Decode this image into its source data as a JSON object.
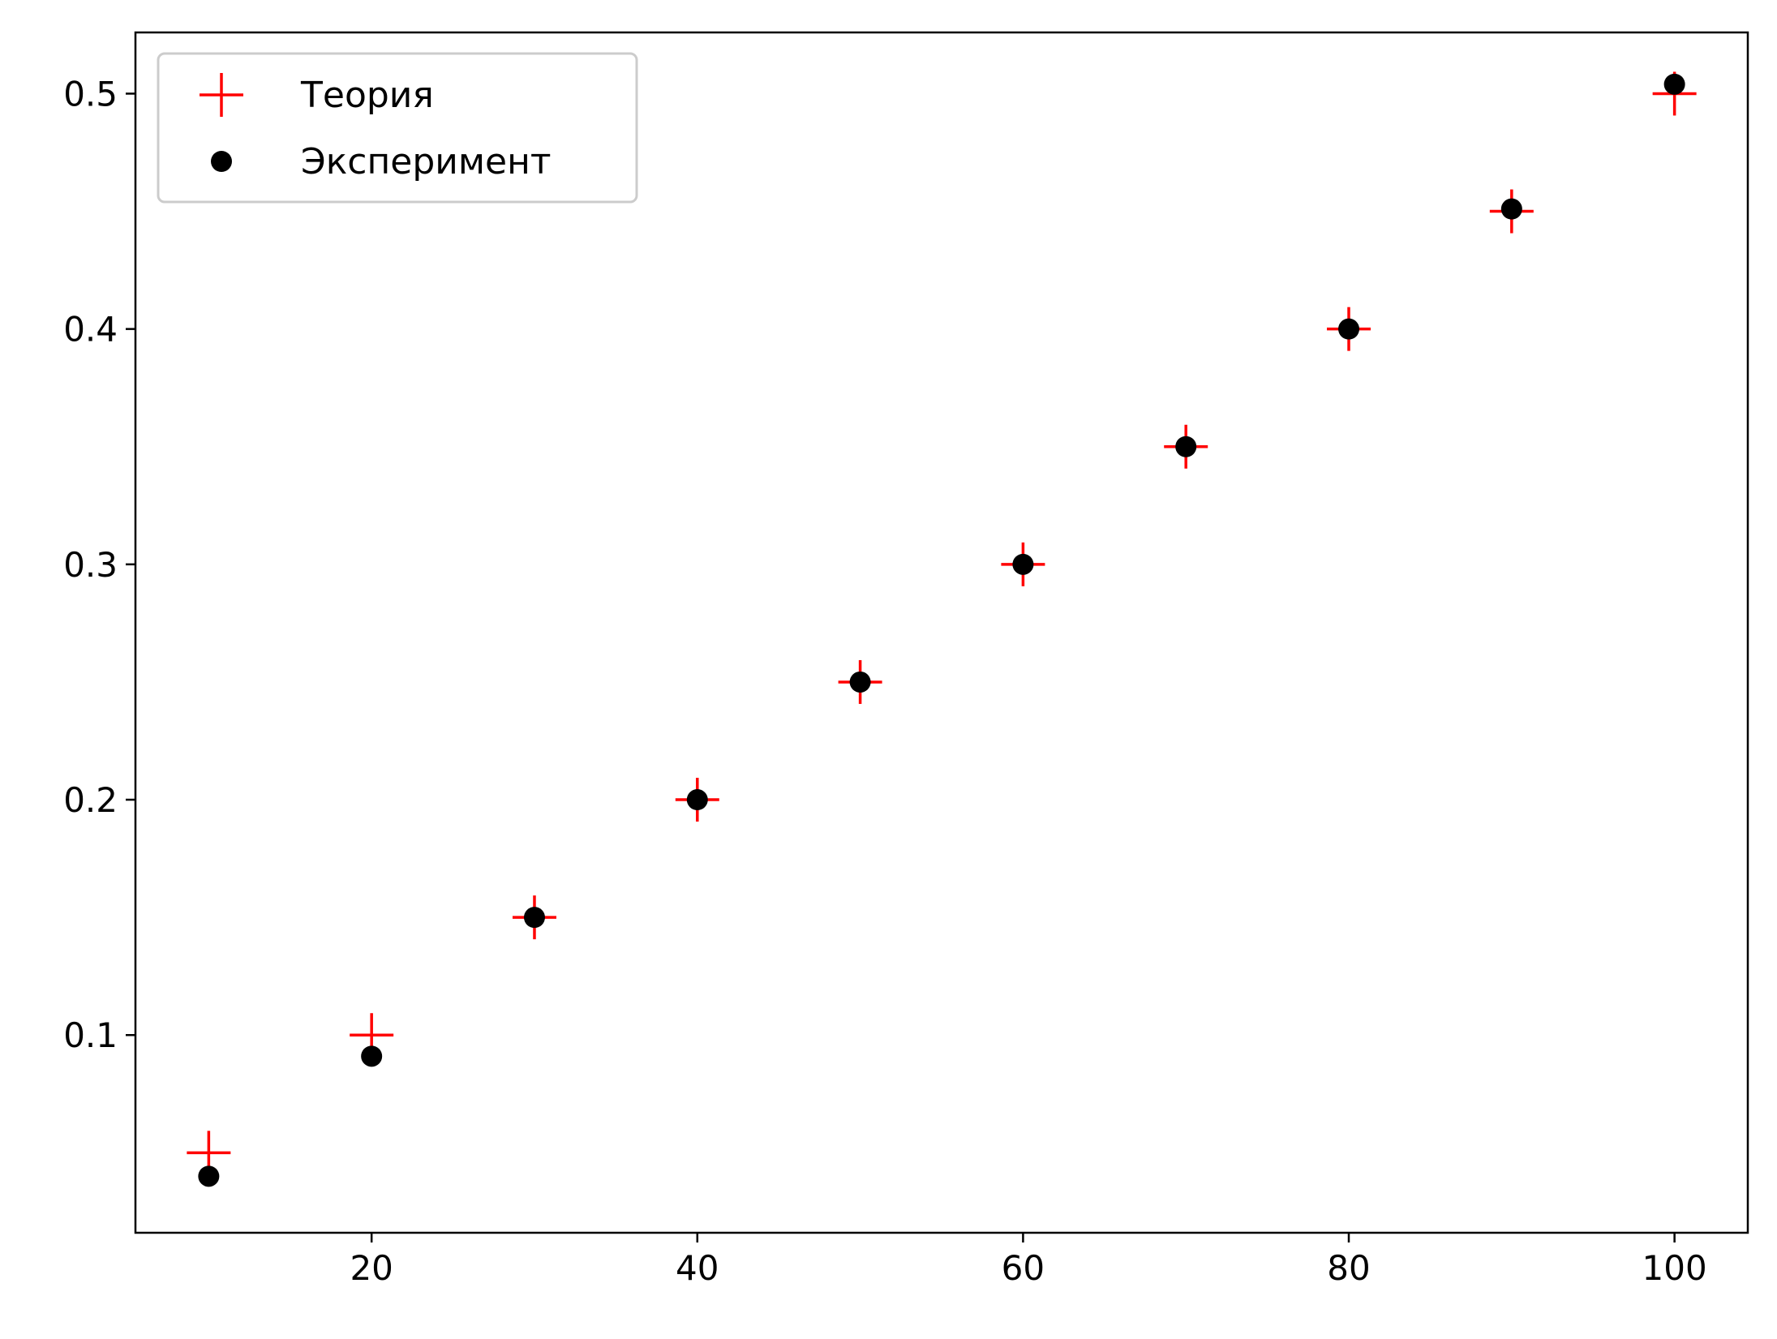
{
  "chart_data": {
    "type": "scatter",
    "title": "",
    "xlabel": "",
    "ylabel": "",
    "xlim": [
      5.5,
      104.5
    ],
    "ylim": [
      0.016,
      0.526
    ],
    "xticks": [
      20,
      40,
      60,
      80,
      100
    ],
    "xtick_labels": [
      "20",
      "40",
      "60",
      "80",
      "100"
    ],
    "yticks": [
      0.1,
      0.2,
      0.3,
      0.4,
      0.5
    ],
    "ytick_labels": [
      "0.1",
      "0.2",
      "0.3",
      "0.4",
      "0.5"
    ],
    "grid": false,
    "legend_position": "top-left",
    "series": [
      {
        "name": "Теория",
        "marker": "plus",
        "color": "#ff0000",
        "x": [
          10,
          20,
          30,
          40,
          50,
          60,
          70,
          80,
          90,
          100
        ],
        "y": [
          0.05,
          0.1,
          0.15,
          0.2,
          0.25,
          0.3,
          0.35,
          0.4,
          0.45,
          0.5
        ]
      },
      {
        "name": "Эксперимент",
        "marker": "circle",
        "color": "#000000",
        "x": [
          10,
          20,
          30,
          40,
          50,
          60,
          70,
          80,
          90,
          100
        ],
        "y": [
          0.04,
          0.091,
          0.15,
          0.2,
          0.25,
          0.3,
          0.35,
          0.4,
          0.451,
          0.504
        ]
      }
    ]
  }
}
